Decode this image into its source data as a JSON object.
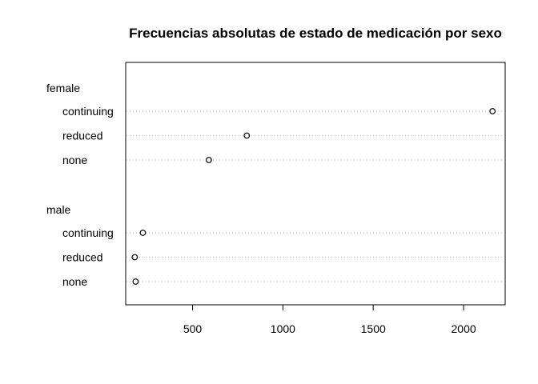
{
  "chart_data": {
    "type": "dotchart",
    "title": "Frecuencias absolutas de estado de medicación por sexo",
    "xlabel": "",
    "ylabel": "",
    "xlim": [
      130,
      2230
    ],
    "xticks": [
      500,
      1000,
      1500,
      2000
    ],
    "xtick_labels": [
      "500",
      "1000",
      "1500",
      "2000"
    ],
    "grid": "dotted horizontal lines at each point",
    "groups": [
      {
        "name": "female",
        "categories": [
          "continuing",
          "reduced",
          "none"
        ],
        "values": [
          2160,
          800,
          590
        ]
      },
      {
        "name": "male",
        "categories": [
          "continuing",
          "reduced",
          "none"
        ],
        "values": [
          225,
          180,
          185
        ]
      }
    ]
  }
}
